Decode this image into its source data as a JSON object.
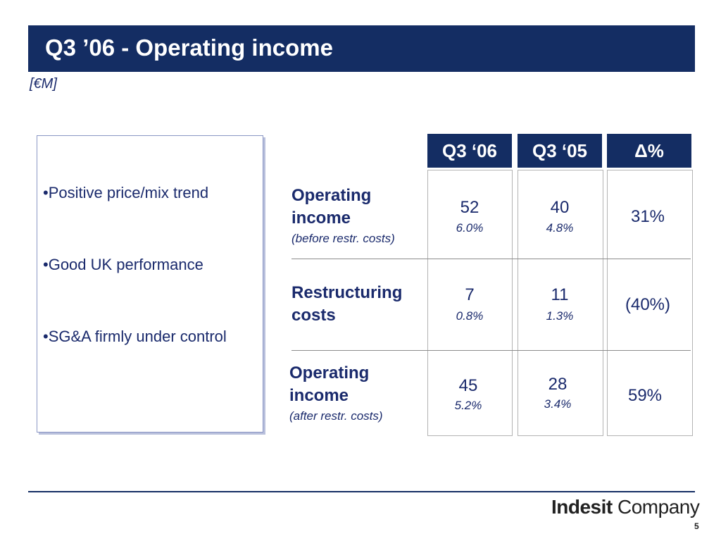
{
  "slide": {
    "title": "Q3 ’06 - Operating income",
    "unit": "[€M]",
    "page_number": "5"
  },
  "bullets": [
    "•Positive price/mix trend",
    "•Good UK performance",
    "•SG&A firmly under control"
  ],
  "table": {
    "headers": [
      "Q3 ‘06",
      "Q3 ‘05",
      "Δ%"
    ],
    "rows": [
      {
        "label": "Operating income",
        "sublabel": "(before restr. costs)",
        "q3_06": {
          "value": "52",
          "pct": "6.0%"
        },
        "q3_05": {
          "value": "40",
          "pct": "4.8%"
        },
        "delta": "31%"
      },
      {
        "label": "Restructuring costs",
        "sublabel": "",
        "q3_06": {
          "value": "7",
          "pct": "0.8%"
        },
        "q3_05": {
          "value": "11",
          "pct": "1.3%"
        },
        "delta": "(40%)"
      },
      {
        "label": "Operating income",
        "sublabel": "(after restr. costs)",
        "q3_06": {
          "value": "45",
          "pct": "5.2%"
        },
        "q3_05": {
          "value": "28",
          "pct": "3.4%"
        },
        "delta": "59%"
      }
    ]
  },
  "brand": {
    "name_bold": "Indesit",
    "name_regular": "Company"
  }
}
